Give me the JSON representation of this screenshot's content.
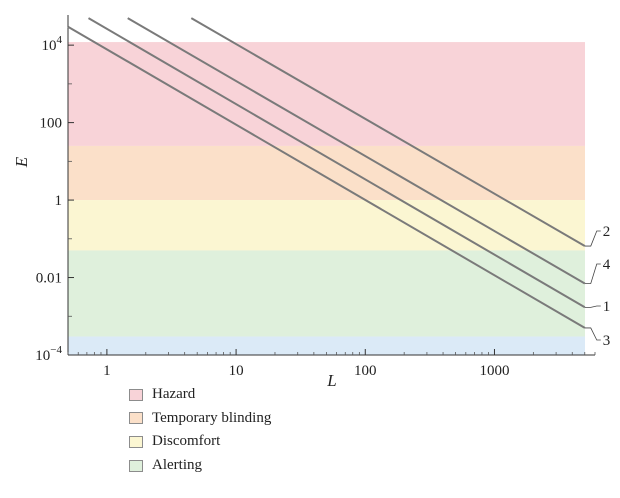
{
  "chart_data": {
    "type": "line",
    "title": "",
    "xlabel": "L",
    "ylabel": "E",
    "x_scale": "log",
    "y_scale": "log",
    "xlim": [
      0.5,
      6000
    ],
    "ylim": [
      0.0001,
      60000
    ],
    "x_ticks": [
      {
        "value": 1,
        "label": "1"
      },
      {
        "value": 10,
        "label": "10"
      },
      {
        "value": 100,
        "label": "100"
      },
      {
        "value": 1000,
        "label": "1000"
      }
    ],
    "y_ticks": [
      {
        "value": 0.0001,
        "label": "10",
        "sup": "−4"
      },
      {
        "value": 0.01,
        "label": "0.01",
        "sup": ""
      },
      {
        "value": 1,
        "label": "1",
        "sup": ""
      },
      {
        "value": 100,
        "label": "100",
        "sup": ""
      },
      {
        "value": 10000,
        "label": "10",
        "sup": "4"
      }
    ],
    "grid": false,
    "legend_position": "bottom-left",
    "bands": [
      {
        "name": "Hazard",
        "from": 25,
        "to": 12000,
        "color": "#f8d3d8"
      },
      {
        "name": "Temporary blinding",
        "from": 1,
        "to": 25,
        "color": "#fbe0c9"
      },
      {
        "name": "Discomfort",
        "from": 0.05,
        "to": 1,
        "color": "#fbf6d2"
      },
      {
        "name": "Alerting",
        "from": 0.0003,
        "to": 0.05,
        "color": "#dff0dc"
      },
      {
        "name": "",
        "from": 0.0001,
        "to": 0.0003,
        "color": "#dbeaf7"
      }
    ],
    "series": [
      {
        "name": "2",
        "color": "#7a7a7a",
        "points": [
          {
            "x": 4.5,
            "y": 50000
          },
          {
            "x": 5000,
            "y": 0.065
          }
        ]
      },
      {
        "name": "4",
        "color": "#7a7a7a",
        "points": [
          {
            "x": 1.45,
            "y": 50000
          },
          {
            "x": 5000,
            "y": 0.007
          }
        ]
      },
      {
        "name": "1",
        "color": "#7a7a7a",
        "points": [
          {
            "x": 0.72,
            "y": 50000
          },
          {
            "x": 5000,
            "y": 0.0017
          }
        ]
      },
      {
        "name": "3",
        "color": "#7a7a7a",
        "points": [
          {
            "x": 0.5,
            "y": 30000
          },
          {
            "x": 5000,
            "y": 0.0005
          }
        ]
      }
    ]
  }
}
